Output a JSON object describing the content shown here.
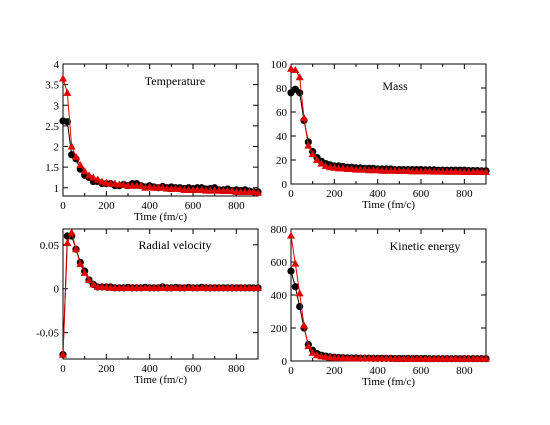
{
  "colors": {
    "black_series": "#000000",
    "red_series": "#e00000"
  },
  "chart_data": [
    {
      "type": "line",
      "title": "Temperature",
      "xlabel": "Time (fm/c)",
      "ylabel": "",
      "xlim": [
        0,
        900
      ],
      "ylim": [
        0.8,
        4.0
      ],
      "xticks": [
        0,
        200,
        400,
        600,
        800
      ],
      "yticks": [
        1,
        1.5,
        2,
        2.5,
        3,
        3.5,
        4
      ],
      "ytick_labels": [
        "1",
        "1.5",
        "2",
        "2.5",
        "3",
        "3.5",
        "4"
      ],
      "x": [
        0,
        20,
        40,
        60,
        80,
        100,
        120,
        140,
        160,
        180,
        200,
        220,
        240,
        260,
        280,
        300,
        320,
        340,
        360,
        380,
        400,
        420,
        440,
        460,
        480,
        500,
        520,
        540,
        560,
        580,
        600,
        620,
        640,
        660,
        680,
        700,
        720,
        740,
        760,
        780,
        800,
        820,
        840,
        860,
        880,
        900
      ],
      "series": [
        {
          "color": "black_series",
          "marker": "circle",
          "values": [
            2.62,
            2.6,
            1.8,
            1.7,
            1.45,
            1.3,
            1.25,
            1.15,
            1.15,
            1.1,
            1.1,
            1.1,
            1.05,
            1.05,
            1.08,
            1.05,
            1.1,
            1.1,
            1.05,
            1.02,
            1.05,
            1.02,
            1.0,
            1.03,
            1.0,
            1.02,
            1.0,
            1.0,
            0.98,
            1.0,
            0.98,
            1.0,
            1.0,
            0.97,
            0.98,
            1.0,
            0.95,
            0.95,
            0.97,
            0.93,
            0.95,
            0.93,
            0.95,
            0.92,
            0.9,
            0.9
          ]
        },
        {
          "color": "red_series",
          "marker": "triangle",
          "values": [
            3.65,
            3.3,
            2.0,
            1.75,
            1.55,
            1.4,
            1.3,
            1.25,
            1.2,
            1.15,
            1.12,
            1.1,
            1.1,
            1.08,
            1.08,
            1.05,
            1.05,
            1.05,
            1.05,
            1.0,
            1.02,
            1.0,
            1.0,
            1.0,
            0.98,
            0.97,
            0.98,
            0.97,
            0.95,
            0.95,
            0.95,
            0.95,
            0.95,
            0.93,
            0.93,
            0.93,
            0.93,
            0.92,
            0.92,
            0.92,
            0.9,
            0.9,
            0.9,
            0.9,
            0.9,
            0.88
          ]
        }
      ]
    },
    {
      "type": "line",
      "title": "Mass",
      "xlabel": "Time (fm/c)",
      "ylabel": "",
      "xlim": [
        0,
        900
      ],
      "ylim": [
        0,
        100
      ],
      "xticks": [
        0,
        200,
        400,
        600,
        800
      ],
      "yticks": [
        0,
        20,
        40,
        60,
        80,
        100
      ],
      "ytick_labels": [
        "0",
        "20",
        "40",
        "60",
        "80",
        "100"
      ],
      "x": [
        0,
        20,
        40,
        60,
        80,
        100,
        120,
        140,
        160,
        180,
        200,
        220,
        240,
        260,
        280,
        300,
        320,
        340,
        360,
        380,
        400,
        420,
        440,
        460,
        480,
        500,
        520,
        540,
        560,
        580,
        600,
        620,
        640,
        660,
        680,
        700,
        720,
        740,
        760,
        780,
        800,
        820,
        840,
        860,
        880,
        900
      ],
      "series": [
        {
          "color": "black_series",
          "marker": "circle",
          "values": [
            76,
            79,
            76,
            53,
            35,
            27,
            22,
            19,
            17,
            16,
            15,
            15,
            14.5,
            14,
            14,
            13.5,
            13.5,
            13,
            13,
            13,
            12.5,
            12.5,
            12.5,
            12.5,
            12,
            12,
            12,
            12,
            12,
            12,
            12,
            11.8,
            11.8,
            11.8,
            11.5,
            11.5,
            11.5,
            11.5,
            11.5,
            11.5,
            11.5,
            11.2,
            11.2,
            11.2,
            11,
            11
          ]
        },
        {
          "color": "red_series",
          "marker": "triangle",
          "values": [
            96,
            95,
            89,
            55,
            32,
            25,
            20,
            17,
            15,
            14,
            13.5,
            13,
            13,
            12.5,
            12.5,
            12,
            12,
            12,
            11.5,
            11.5,
            11.5,
            11,
            11,
            11,
            11,
            10.8,
            10.8,
            10.8,
            10.5,
            10.5,
            10.5,
            10.5,
            10.5,
            10.3,
            10.3,
            10.3,
            10.2,
            10.2,
            10.2,
            10.2,
            10,
            10,
            10,
            10,
            10,
            10
          ]
        }
      ]
    },
    {
      "type": "line",
      "title": "Radial velocity",
      "xlabel": "Time (fm/c)",
      "ylabel": "",
      "xlim": [
        0,
        900
      ],
      "ylim": [
        -0.08,
        0.068
      ],
      "xticks": [
        0,
        200,
        400,
        600,
        800
      ],
      "yticks": [
        -0.05,
        0,
        0.05
      ],
      "ytick_labels": [
        "-0.05",
        "0",
        "0.05"
      ],
      "x": [
        0,
        20,
        40,
        60,
        80,
        100,
        120,
        140,
        160,
        180,
        200,
        220,
        240,
        260,
        280,
        300,
        320,
        340,
        360,
        380,
        400,
        420,
        440,
        460,
        480,
        500,
        520,
        540,
        560,
        580,
        600,
        620,
        640,
        660,
        680,
        700,
        720,
        740,
        760,
        780,
        800,
        820,
        840,
        860,
        880,
        900
      ],
      "series": [
        {
          "color": "black_series",
          "marker": "circle",
          "values": [
            -0.075,
            0.06,
            0.06,
            0.045,
            0.03,
            0.02,
            0.01,
            0.005,
            0.002,
            0.002,
            0.002,
            0.002,
            0.001,
            0.001,
            0.001,
            0.0015,
            0.001,
            0.001,
            0.001,
            0.0015,
            0.001,
            0.001,
            0.001,
            0.002,
            0.001,
            0.001,
            0.0015,
            0.001,
            0.001,
            0.0015,
            0.001,
            0.001,
            0.0015,
            0.001,
            0.001,
            0.001,
            0.001,
            0.001,
            0.001,
            0.001,
            0.001,
            0.001,
            0.001,
            0.001,
            0.001,
            0.001
          ]
        },
        {
          "color": "red_series",
          "marker": "triangle",
          "values": [
            -0.075,
            0.052,
            0.064,
            0.045,
            0.028,
            0.018,
            0.01,
            0.005,
            0.002,
            0.002,
            0.002,
            0.001,
            0.001,
            0.001,
            0.001,
            0.001,
            0.001,
            0.001,
            0.001,
            0.001,
            0.001,
            0.001,
            0.001,
            0.001,
            0.001,
            0.001,
            0.001,
            0.001,
            0.001,
            0.001,
            0.001,
            0.001,
            0.001,
            0.001,
            0.001,
            0.001,
            0.001,
            0.001,
            0.001,
            0.001,
            0.001,
            0.001,
            0.001,
            0.001,
            0.001,
            0.001
          ]
        }
      ]
    },
    {
      "type": "line",
      "title": "Kinetic energy",
      "xlabel": "Time (fm/c)",
      "ylabel": "",
      "xlim": [
        0,
        900
      ],
      "ylim": [
        0,
        800
      ],
      "xticks": [
        0,
        200,
        400,
        600,
        800
      ],
      "yticks": [
        0,
        200,
        400,
        600,
        800
      ],
      "ytick_labels": [
        "0",
        "200",
        "400",
        "600",
        "800"
      ],
      "x": [
        0,
        20,
        40,
        60,
        80,
        100,
        120,
        140,
        160,
        180,
        200,
        220,
        240,
        260,
        280,
        300,
        320,
        340,
        360,
        380,
        400,
        420,
        440,
        460,
        480,
        500,
        520,
        540,
        560,
        580,
        600,
        620,
        640,
        660,
        680,
        700,
        720,
        740,
        760,
        780,
        800,
        820,
        840,
        860,
        880,
        900
      ],
      "series": [
        {
          "color": "black_series",
          "marker": "circle",
          "values": [
            545,
            450,
            330,
            200,
            100,
            65,
            45,
            35,
            30,
            25,
            23,
            21,
            20,
            19,
            18,
            18,
            17,
            17,
            17,
            16,
            16,
            16,
            16,
            16,
            15,
            15,
            15,
            15,
            15,
            15,
            15,
            15,
            14,
            14,
            14,
            14,
            14,
            14,
            14,
            14,
            14,
            14,
            14,
            14,
            14,
            14
          ]
        },
        {
          "color": "red_series",
          "marker": "triangle",
          "values": [
            760,
            590,
            410,
            215,
            90,
            50,
            35,
            28,
            25,
            22,
            20,
            19,
            18,
            17,
            17,
            16,
            16,
            16,
            15,
            15,
            15,
            15,
            15,
            15,
            14,
            14,
            14,
            14,
            14,
            14,
            14,
            14,
            14,
            14,
            14,
            14,
            14,
            14,
            14,
            14,
            14,
            14,
            14,
            14,
            14,
            14
          ]
        }
      ]
    }
  ]
}
